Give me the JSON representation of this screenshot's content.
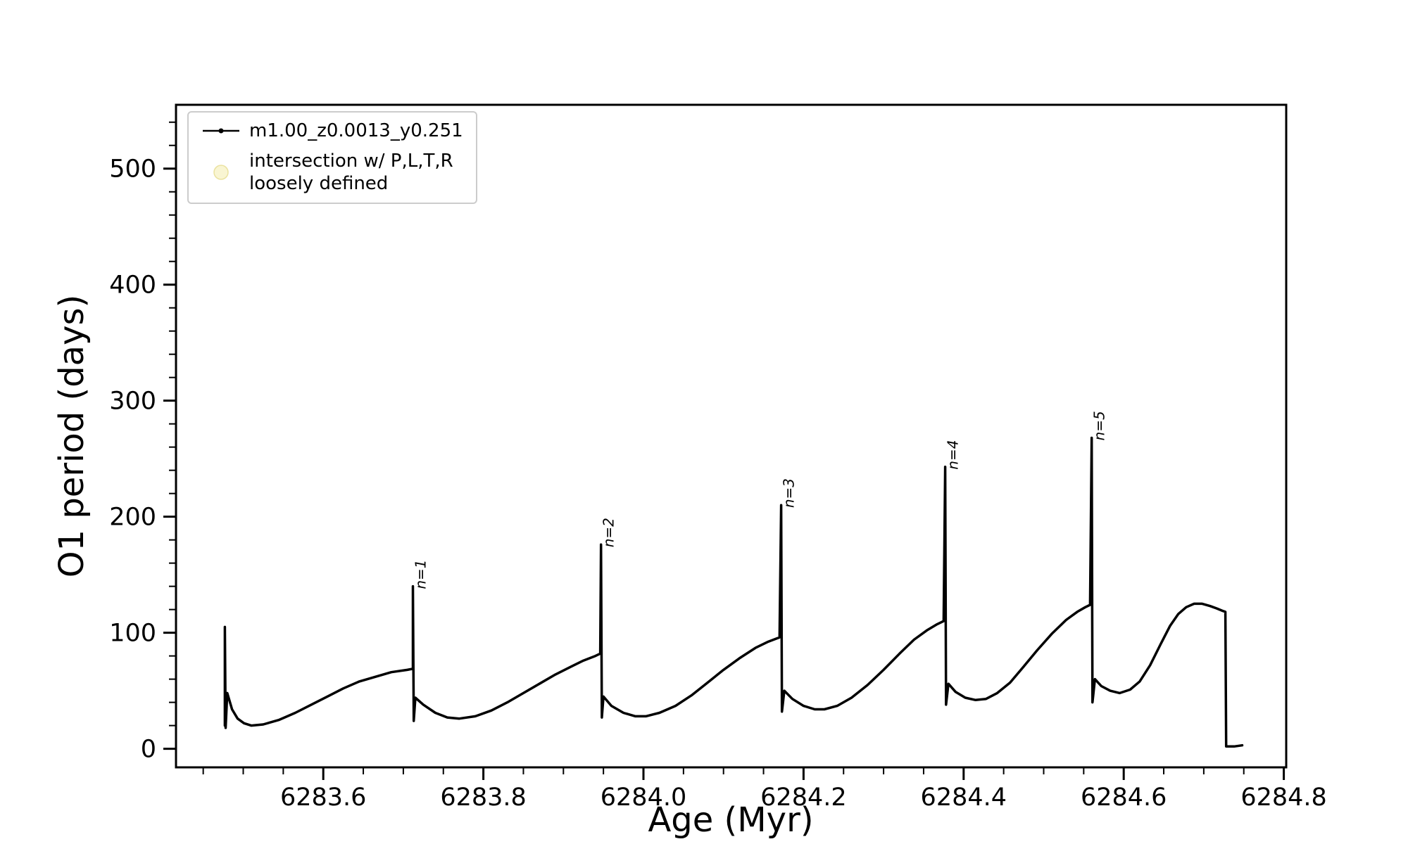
{
  "figure": {
    "background": "#ffffff",
    "axis_color": "#000000"
  },
  "chart_data": {
    "type": "line",
    "title": "",
    "xlabel": "Age (Myr)",
    "ylabel": "O1 period (days)",
    "xlim": [
      6283.416,
      6284.803
    ],
    "ylim": [
      -16,
      555
    ],
    "grid": false,
    "x_major_ticks": [
      6283.6,
      6283.8,
      6284.0,
      6284.2,
      6284.4,
      6284.6,
      6284.8
    ],
    "x_tick_labels": [
      "6283.6",
      "6283.8",
      "6284.0",
      "6284.2",
      "6284.4",
      "6284.6",
      "6284.8"
    ],
    "x_minor_step": 0.05,
    "y_major_ticks": [
      0,
      100,
      200,
      300,
      400,
      500
    ],
    "y_tick_labels": [
      "0",
      "100",
      "200",
      "300",
      "400",
      "500"
    ],
    "y_minor_step": 20,
    "legend": {
      "position": "upper-left",
      "entries": [
        {
          "type": "line",
          "color": "#000000",
          "label": "m1.00_z0.0013_y0.251"
        },
        {
          "type": "circle",
          "color": "#f5eeb4",
          "stroke": "#e6dc8f",
          "label": "intersection w/ P,L,T,R\nloosely defined"
        }
      ]
    },
    "annotations": [
      {
        "text": "n=1",
        "x": 6283.712,
        "y": 140,
        "rotation": 90
      },
      {
        "text": "n=2",
        "x": 6283.947,
        "y": 176,
        "rotation": 90
      },
      {
        "text": "n=3",
        "x": 6284.172,
        "y": 210,
        "rotation": 90
      },
      {
        "text": "n=4",
        "x": 6284.377,
        "y": 243,
        "rotation": 90
      },
      {
        "text": "n=5",
        "x": 6284.56,
        "y": 268,
        "rotation": 90
      }
    ],
    "series": [
      {
        "name": "m1.00_z0.0013_y0.251",
        "color": "#000000",
        "points": [
          [
            6283.477,
            20
          ],
          [
            6283.477,
            105
          ],
          [
            6283.478,
            18
          ],
          [
            6283.48,
            48
          ],
          [
            6283.486,
            34
          ],
          [
            6283.493,
            26
          ],
          [
            6283.501,
            22
          ],
          [
            6283.51,
            20
          ],
          [
            6283.525,
            21
          ],
          [
            6283.545,
            25
          ],
          [
            6283.565,
            31
          ],
          [
            6283.585,
            38
          ],
          [
            6283.605,
            45
          ],
          [
            6283.625,
            52
          ],
          [
            6283.645,
            58
          ],
          [
            6283.665,
            62
          ],
          [
            6283.685,
            66
          ],
          [
            6283.705,
            68
          ],
          [
            6283.712,
            69
          ],
          [
            6283.712,
            140
          ],
          [
            6283.713,
            24
          ],
          [
            6283.715,
            44
          ],
          [
            6283.725,
            38
          ],
          [
            6283.74,
            31
          ],
          [
            6283.755,
            27
          ],
          [
            6283.77,
            26
          ],
          [
            6283.79,
            28
          ],
          [
            6283.81,
            33
          ],
          [
            6283.83,
            40
          ],
          [
            6283.85,
            48
          ],
          [
            6283.87,
            56
          ],
          [
            6283.89,
            64
          ],
          [
            6283.91,
            71
          ],
          [
            6283.925,
            76
          ],
          [
            6283.94,
            80
          ],
          [
            6283.946,
            82
          ],
          [
            6283.947,
            176
          ],
          [
            6283.948,
            27
          ],
          [
            6283.95,
            45
          ],
          [
            6283.96,
            37
          ],
          [
            6283.975,
            31
          ],
          [
            6283.99,
            28
          ],
          [
            6284.003,
            28
          ],
          [
            6284.02,
            31
          ],
          [
            6284.04,
            37
          ],
          [
            6284.06,
            46
          ],
          [
            6284.08,
            57
          ],
          [
            6284.1,
            68
          ],
          [
            6284.12,
            78
          ],
          [
            6284.14,
            87
          ],
          [
            6284.155,
            92
          ],
          [
            6284.17,
            96
          ],
          [
            6284.172,
            210
          ],
          [
            6284.173,
            32
          ],
          [
            6284.176,
            50
          ],
          [
            6284.186,
            43
          ],
          [
            6284.2,
            37
          ],
          [
            6284.214,
            34
          ],
          [
            6284.226,
            34
          ],
          [
            6284.242,
            37
          ],
          [
            6284.26,
            44
          ],
          [
            6284.28,
            55
          ],
          [
            6284.3,
            68
          ],
          [
            6284.32,
            82
          ],
          [
            6284.338,
            94
          ],
          [
            6284.354,
            102
          ],
          [
            6284.366,
            107
          ],
          [
            6284.375,
            110
          ],
          [
            6284.377,
            243
          ],
          [
            6284.378,
            38
          ],
          [
            6284.381,
            56
          ],
          [
            6284.39,
            49
          ],
          [
            6284.402,
            44
          ],
          [
            6284.415,
            42
          ],
          [
            6284.428,
            43
          ],
          [
            6284.442,
            48
          ],
          [
            6284.458,
            57
          ],
          [
            6284.474,
            70
          ],
          [
            6284.492,
            85
          ],
          [
            6284.51,
            99
          ],
          [
            6284.528,
            111
          ],
          [
            6284.542,
            118
          ],
          [
            6284.552,
            122
          ],
          [
            6284.558,
            124
          ],
          [
            6284.56,
            268
          ],
          [
            6284.561,
            40
          ],
          [
            6284.564,
            60
          ],
          [
            6284.572,
            54
          ],
          [
            6284.583,
            50
          ],
          [
            6284.595,
            48
          ],
          [
            6284.608,
            51
          ],
          [
            6284.62,
            58
          ],
          [
            6284.633,
            72
          ],
          [
            6284.646,
            90
          ],
          [
            6284.658,
            106
          ],
          [
            6284.668,
            116
          ],
          [
            6284.678,
            122
          ],
          [
            6284.688,
            125
          ],
          [
            6284.698,
            125
          ],
          [
            6284.708,
            123
          ],
          [
            6284.716,
            121
          ],
          [
            6284.723,
            119
          ],
          [
            6284.727,
            118
          ],
          [
            6284.728,
            2
          ],
          [
            6284.738,
            2
          ],
          [
            6284.748,
            3
          ]
        ]
      }
    ]
  }
}
